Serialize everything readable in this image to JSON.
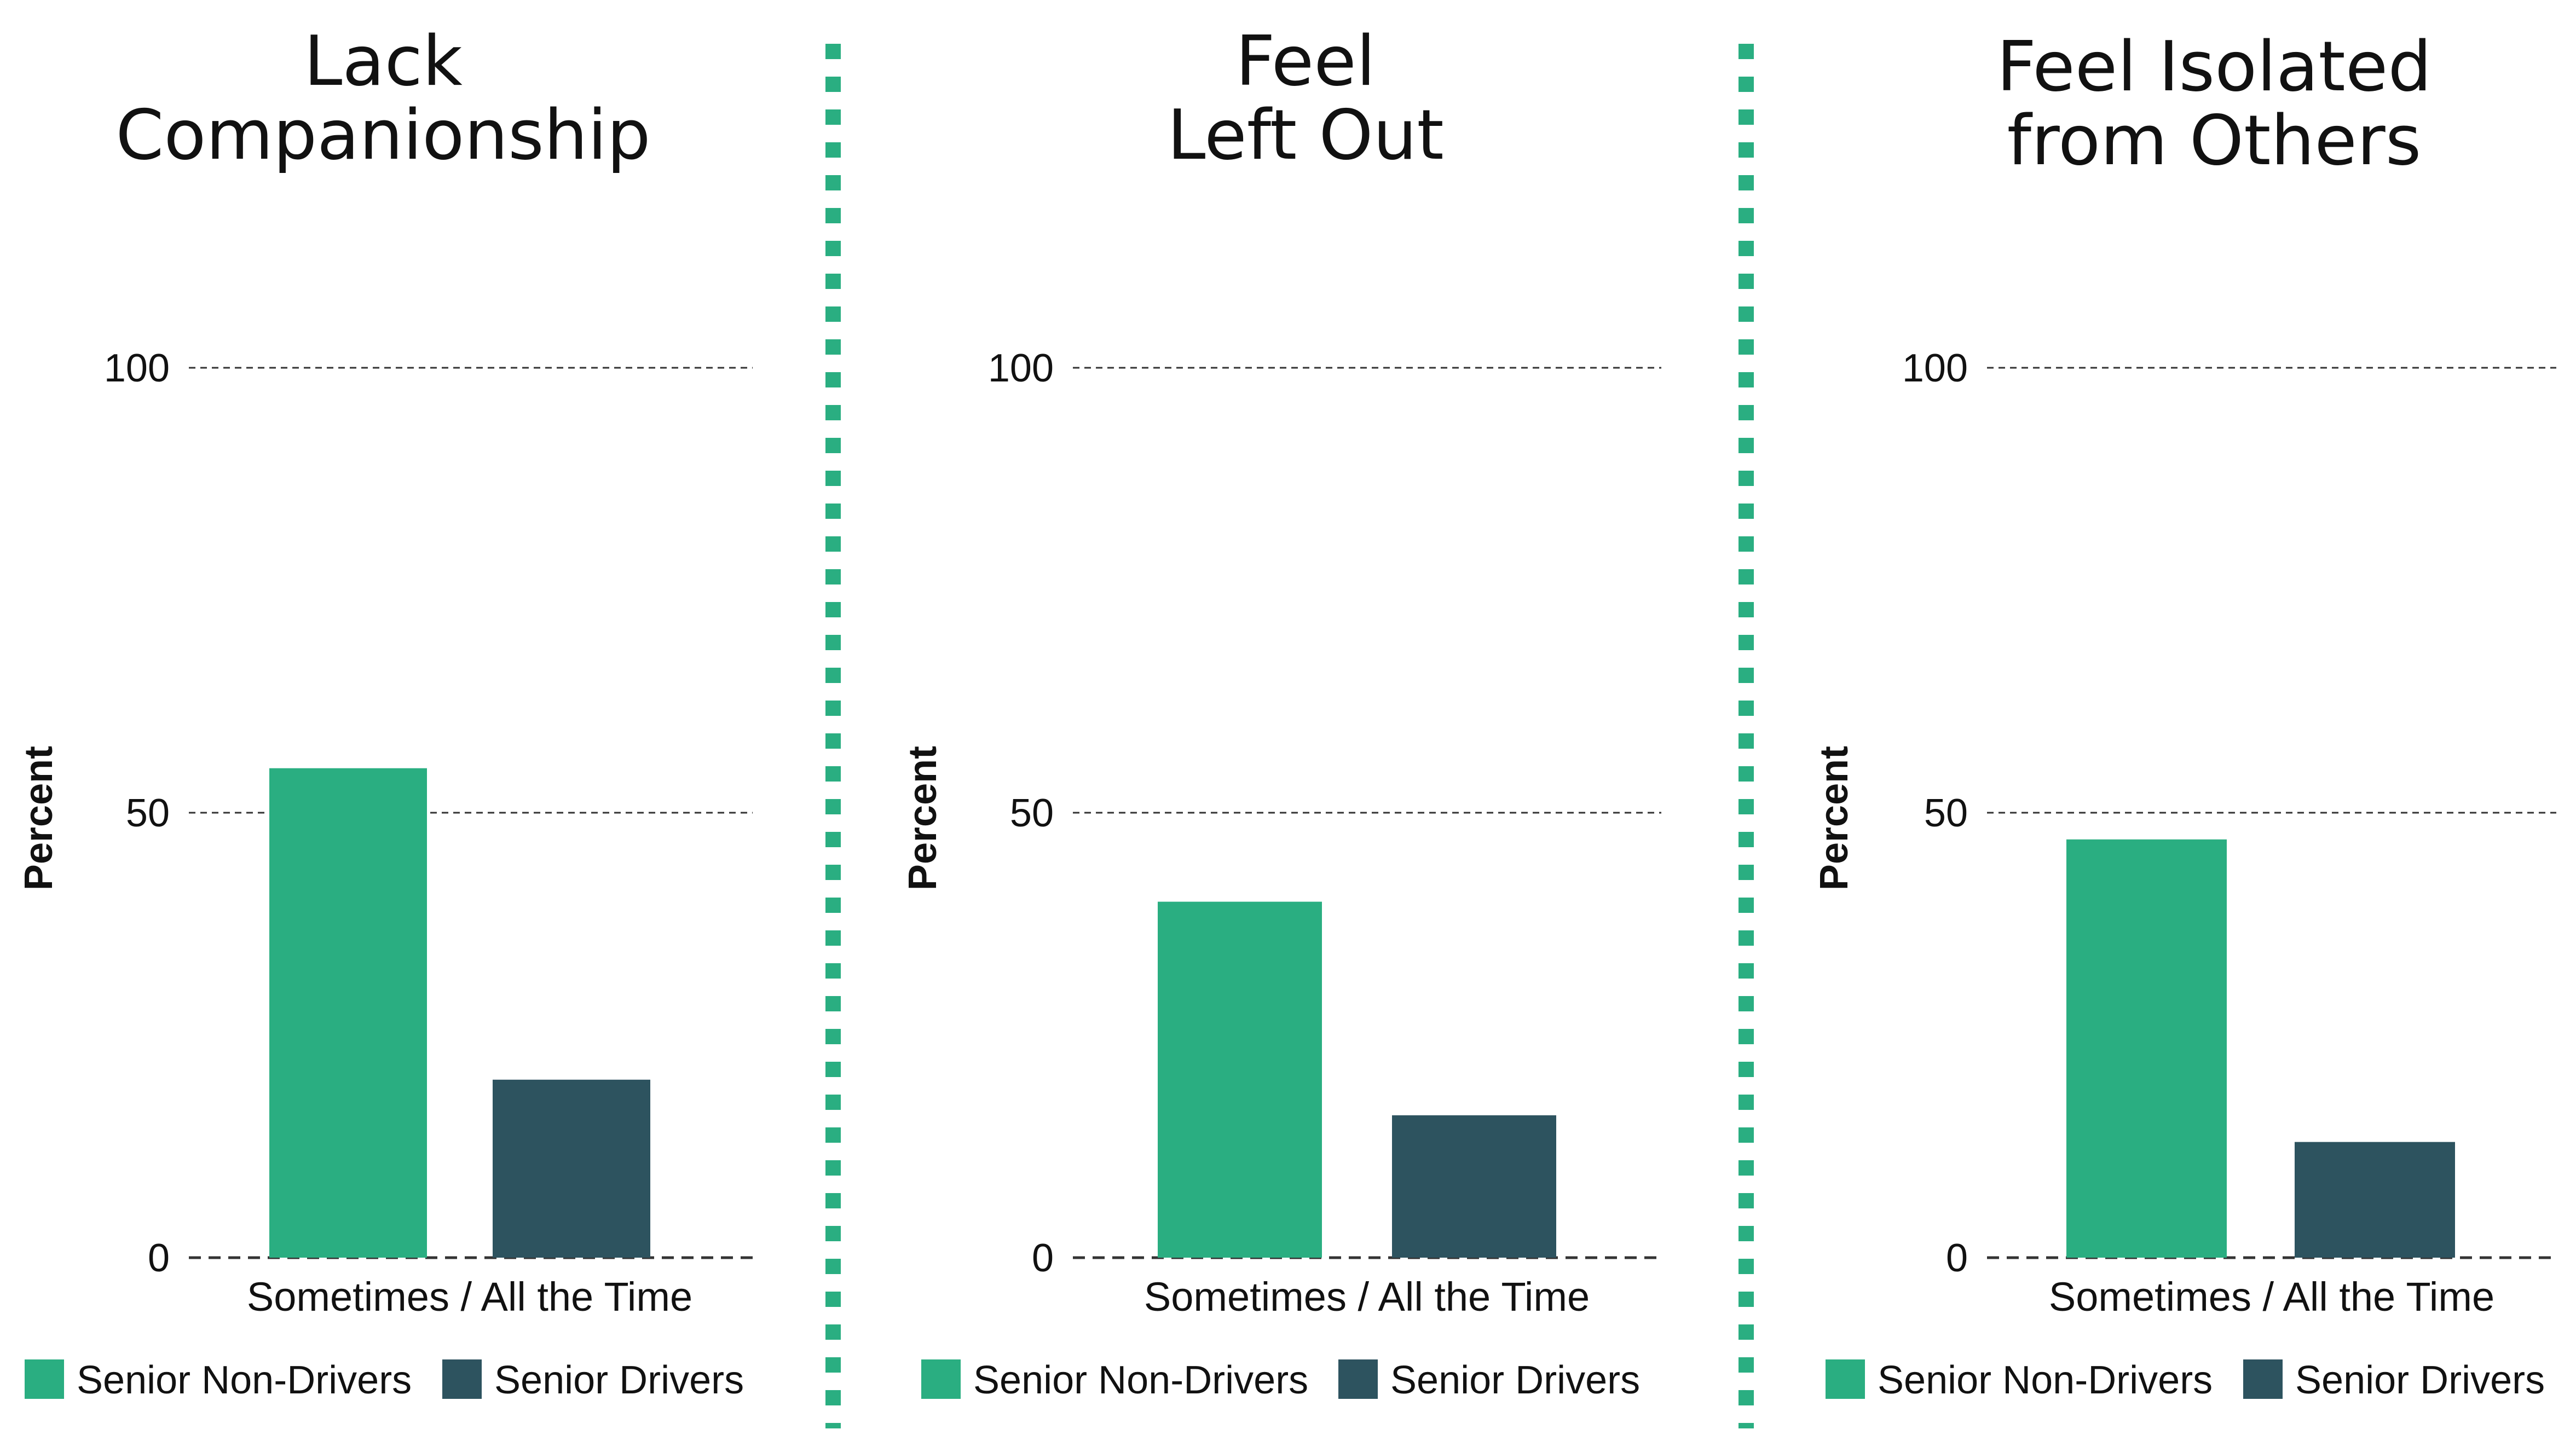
{
  "colors": {
    "non_drivers": "#2aae81",
    "drivers": "#2d535f",
    "separator": "#2aae81",
    "grid": "#333333"
  },
  "chart_data": [
    {
      "type": "bar",
      "title_lines": [
        "Lack",
        "Companionship"
      ],
      "ylabel": "Percent",
      "categories": [
        "Sometimes / All the Time"
      ],
      "yticks": [
        "0",
        "50",
        "100"
      ],
      "ylim": [
        0,
        100
      ],
      "grid": true,
      "legend_position": "bottom",
      "series": [
        {
          "name": "Senior Non-Drivers",
          "color": "#2aae81",
          "values": [
            55
          ]
        },
        {
          "name": "Senior Drivers",
          "color": "#2d535f",
          "values": [
            20
          ]
        }
      ]
    },
    {
      "type": "bar",
      "title_lines": [
        "Feel",
        "Left Out"
      ],
      "ylabel": "Percent",
      "categories": [
        "Sometimes / All the Time"
      ],
      "yticks": [
        "0",
        "50",
        "100"
      ],
      "ylim": [
        0,
        100
      ],
      "grid": true,
      "legend_position": "bottom",
      "series": [
        {
          "name": "Senior Non-Drivers",
          "color": "#2aae81",
          "values": [
            40
          ]
        },
        {
          "name": "Senior Drivers",
          "color": "#2d535f",
          "values": [
            16
          ]
        }
      ]
    },
    {
      "type": "bar",
      "title_lines": [
        "Feel Isolated",
        "from Others"
      ],
      "ylabel": "Percent",
      "categories": [
        "Sometimes / All the Time"
      ],
      "yticks": [
        "0",
        "50",
        "100"
      ],
      "ylim": [
        0,
        100
      ],
      "grid": true,
      "legend_position": "bottom",
      "series": [
        {
          "name": "Senior Non-Drivers",
          "color": "#2aae81",
          "values": [
            47
          ]
        },
        {
          "name": "Senior Drivers",
          "color": "#2d535f",
          "values": [
            13
          ]
        }
      ]
    }
  ]
}
